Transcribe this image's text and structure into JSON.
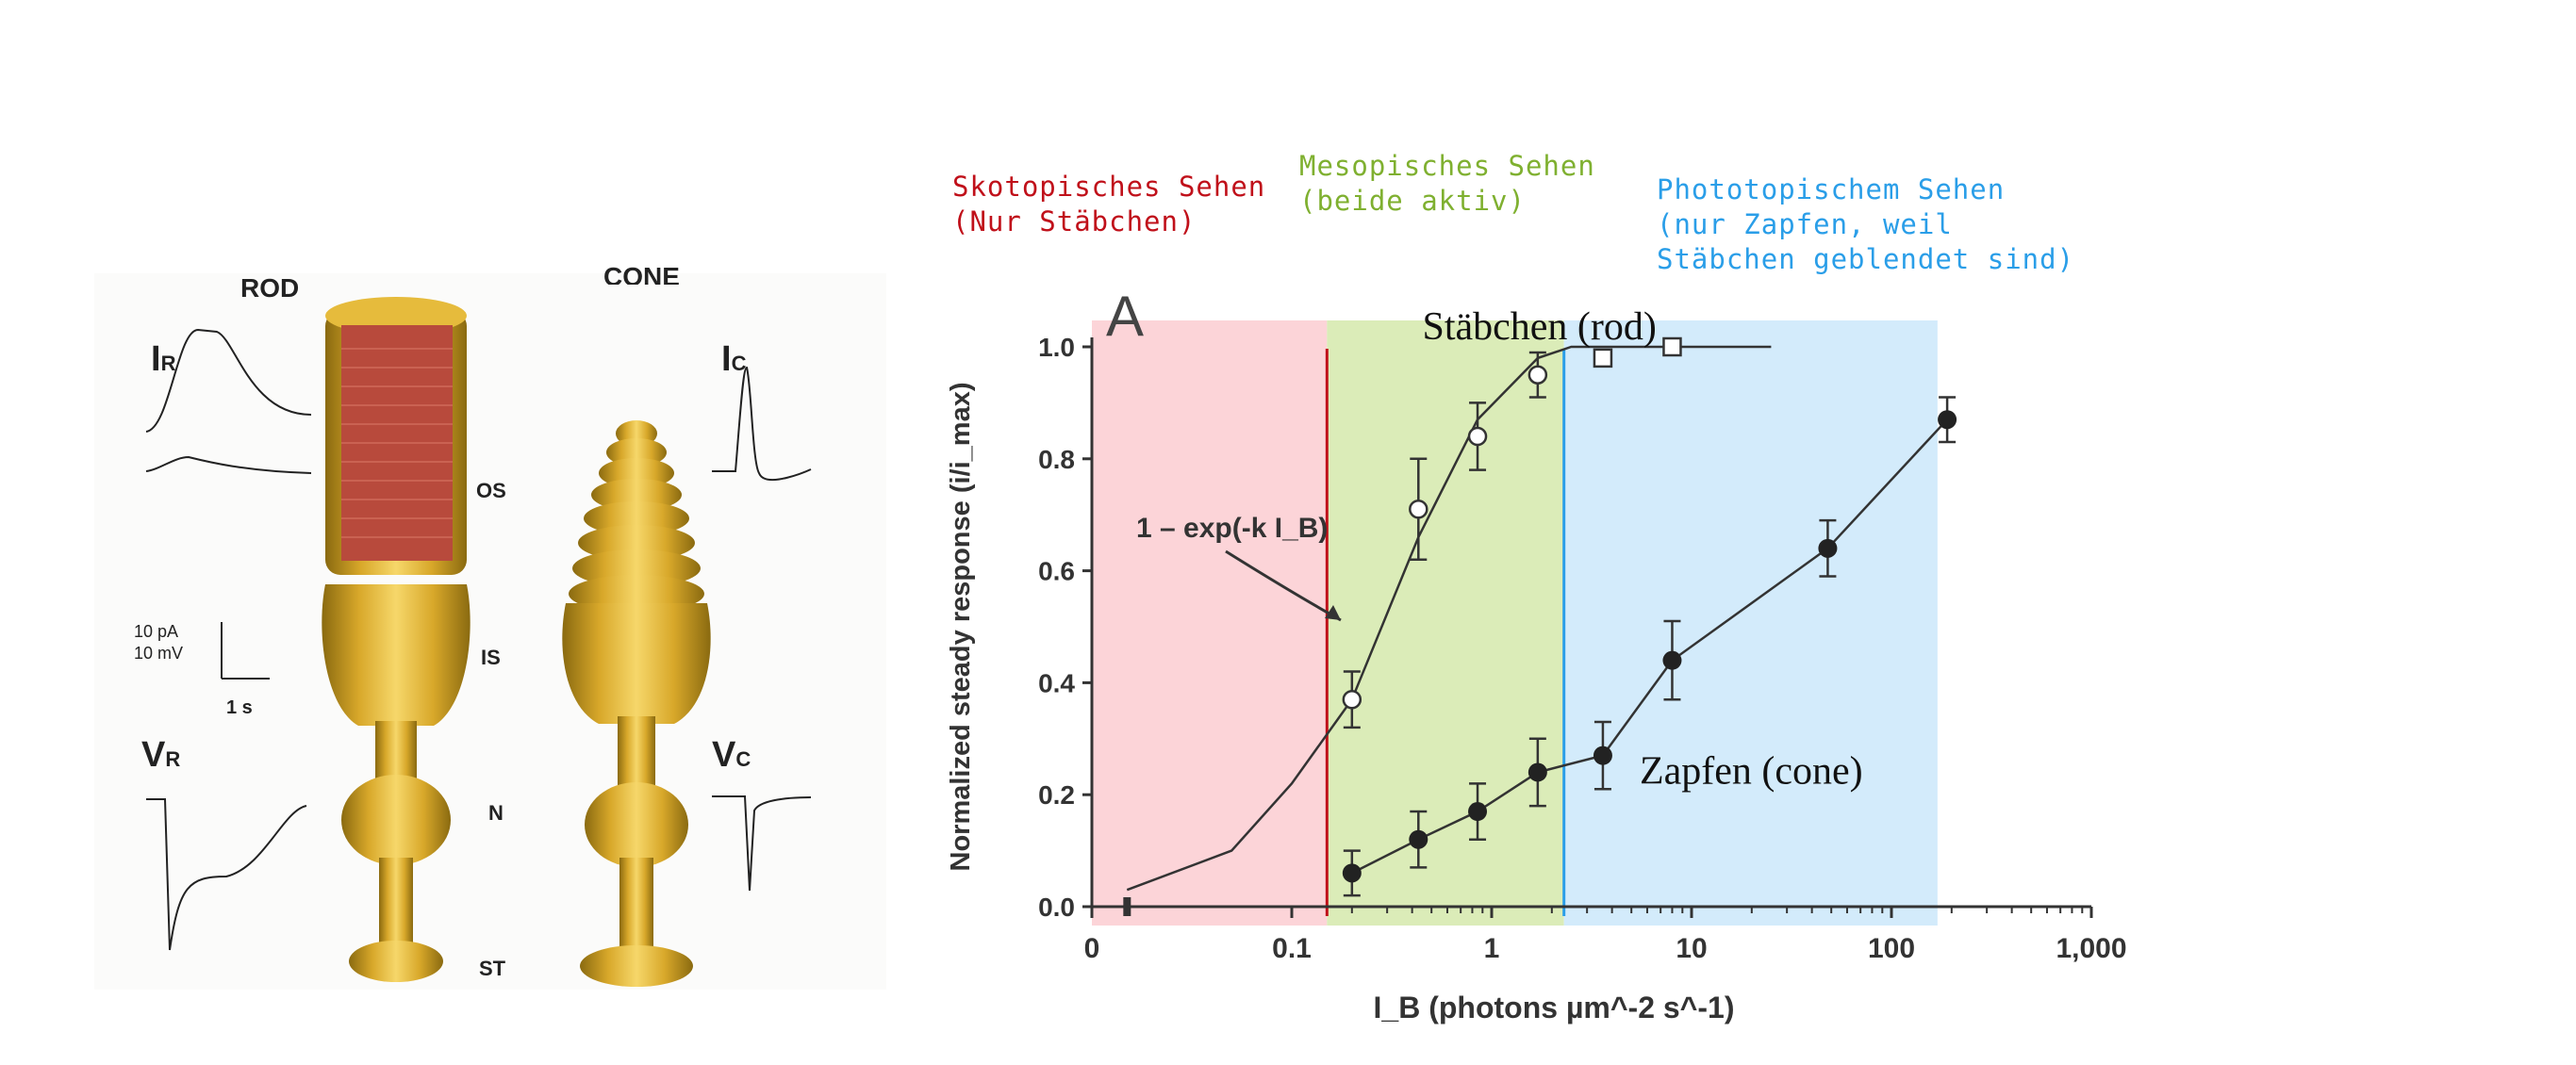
{
  "left_figure": {
    "rod_header": "ROD",
    "cone_header": "CONE",
    "rod_current_label": "I",
    "rod_current_sub": "R",
    "cone_current_label": "I",
    "cone_current_sub": "C",
    "rod_voltage_label": "V",
    "rod_voltage_sub": "R",
    "cone_voltage_label": "V",
    "cone_voltage_sub": "C",
    "scale_pa": "10 pA",
    "scale_mv": "10 mV",
    "scale_time": "1 s",
    "segment_os": "OS",
    "segment_is": "IS",
    "segment_n": "N",
    "segment_st": "ST"
  },
  "annotations": {
    "scotopic_line1": "Skotopisches Sehen",
    "scotopic_line2": "(Nur Stäbchen)",
    "mesopic_line1": "Mesopisches Sehen",
    "mesopic_line2": "(beide aktiv)",
    "photopic_line1": "Phototopischem Sehen",
    "photopic_line2": "(nur Zapfen, weil",
    "photopic_line3": "Stäbchen geblendet sind)",
    "rod_curve_label": "Stäbchen (rod)",
    "cone_curve_label": "Zapfen (cone)",
    "colors": {
      "scotopic": "#c0101a",
      "mesopic": "#7fb030",
      "photopic": "#2a9ee8",
      "scotopic_fill": "#fcd4d8",
      "mesopic_fill": "#dbecb8",
      "photopic_fill": "#d3ebfb"
    }
  },
  "chart_data": {
    "type": "line",
    "panel_label": "A",
    "ylabel": "Normalized steady response (i/i_max)",
    "xlabel": "I_B (photons µm^-2 s^-1)",
    "x_ticks": [
      "0",
      "0.1",
      "1",
      "10",
      "100",
      "1,000"
    ],
    "y_ticks": [
      "0.0",
      "0.2",
      "0.4",
      "0.6",
      "0.8",
      "1.0"
    ],
    "ylim": [
      0,
      1.0
    ],
    "x_scale": "log",
    "fit_label": "1 – exp(-k I_B)",
    "series": [
      {
        "marker": "open-circle",
        "x": [
          0.2,
          0.43,
          0.85,
          1.7,
          3.6,
          8
        ],
        "y": [
          0.37,
          0.71,
          0.84,
          0.95,
          0.98,
          1.0
        ],
        "err": [
          0.05,
          0.09,
          0.06,
          0.04,
          0.0,
          0.0
        ]
      },
      {
        "marker": "filled-circle",
        "x": [
          0.2,
          0.43,
          0.85,
          1.7,
          3.6,
          8,
          48,
          190
        ],
        "y": [
          0.06,
          0.12,
          0.17,
          0.24,
          0.27,
          0.44,
          0.64,
          0.87
        ],
        "err": [
          0.04,
          0.05,
          0.05,
          0.06,
          0.06,
          0.07,
          0.05,
          0.04
        ]
      }
    ],
    "fit_curve": {
      "x": [
        0.015,
        0.05,
        0.1,
        0.2,
        0.43,
        0.85,
        1.7,
        2.5,
        25
      ],
      "y": [
        0.03,
        0.1,
        0.22,
        0.37,
        0.66,
        0.87,
        0.98,
        1.0,
        1.0
      ]
    },
    "regions": [
      {
        "name": "Skotopisches Sehen",
        "x_to": 0.15
      },
      {
        "name": "Mesopisches Sehen",
        "x_from": 0.15,
        "x_to": 2.3
      },
      {
        "name": "Phototopischem Sehen",
        "x_from": 2.3
      }
    ]
  }
}
